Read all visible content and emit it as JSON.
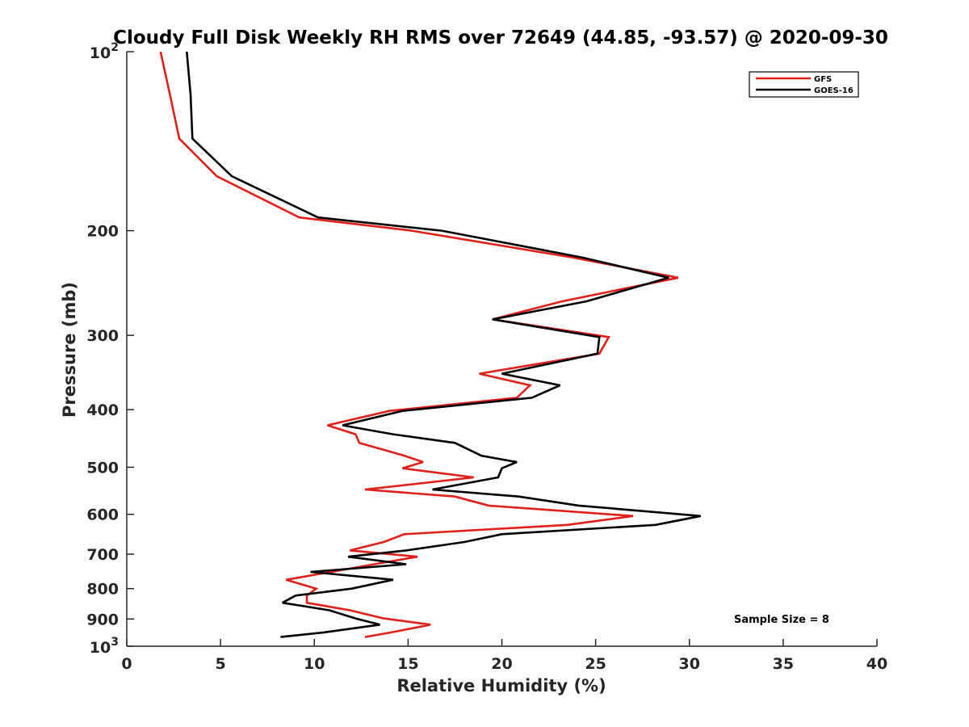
{
  "chart_data": {
    "type": "line",
    "title": "Cloudy Full Disk Weekly RH RMS over 72649 (44.85, -93.57) @ 2020-09-30",
    "xlabel": "Relative Humidity (%)",
    "ylabel": "Pressure (mb)",
    "xlim": [
      0,
      40
    ],
    "ylim": [
      100,
      1000
    ],
    "y_scale": "log",
    "y_reversed": true,
    "grid": false,
    "legend_position": "top-right",
    "x_ticks": [
      "0",
      "5",
      "10",
      "15",
      "20",
      "25",
      "30",
      "35",
      "40"
    ],
    "y_ticks": [
      {
        "value": 100,
        "base": "10",
        "exp": "2"
      },
      {
        "value": 200,
        "label": "200"
      },
      {
        "value": 300,
        "label": "300"
      },
      {
        "value": 400,
        "label": "400"
      },
      {
        "value": 500,
        "label": "500"
      },
      {
        "value": 600,
        "label": "600"
      },
      {
        "value": 700,
        "label": "700"
      },
      {
        "value": 800,
        "label": "800"
      },
      {
        "value": 900,
        "label": "900"
      },
      {
        "value": 1000,
        "base": "10",
        "exp": "3"
      }
    ],
    "annotation": "Sample Size = 8",
    "series": [
      {
        "name": "GFS",
        "color": "#e0201b",
        "points": [
          [
            1.8,
            100
          ],
          [
            2.3,
            118
          ],
          [
            2.8,
            140
          ],
          [
            4.8,
            162
          ],
          [
            9.2,
            190
          ],
          [
            15.2,
            200
          ],
          [
            23.8,
            222
          ],
          [
            29.4,
            240
          ],
          [
            23.2,
            263
          ],
          [
            19.5,
            282
          ],
          [
            25.7,
            302
          ],
          [
            25.2,
            322
          ],
          [
            18.8,
            348
          ],
          [
            21.5,
            364
          ],
          [
            20.8,
            382
          ],
          [
            14.0,
            402
          ],
          [
            10.7,
            425
          ],
          [
            12.2,
            440
          ],
          [
            12.4,
            455
          ],
          [
            14.8,
            478
          ],
          [
            15.8,
            490
          ],
          [
            14.7,
            502
          ],
          [
            18.5,
            520
          ],
          [
            12.7,
            545
          ],
          [
            17.5,
            560
          ],
          [
            19.3,
            580
          ],
          [
            27.0,
            604
          ],
          [
            23.5,
            625
          ],
          [
            14.8,
            648
          ],
          [
            13.7,
            668
          ],
          [
            11.9,
            690
          ],
          [
            15.5,
            707
          ],
          [
            13.2,
            728
          ],
          [
            10.9,
            750
          ],
          [
            8.5,
            773
          ],
          [
            10.1,
            800
          ],
          [
            9.6,
            822
          ],
          [
            9.6,
            845
          ],
          [
            11.9,
            870
          ],
          [
            13.7,
            898
          ],
          [
            16.2,
            920
          ],
          [
            14.1,
            948
          ],
          [
            12.7,
            965
          ]
        ]
      },
      {
        "name": "GOES-16",
        "color": "#000000",
        "points": [
          [
            3.2,
            100
          ],
          [
            3.4,
            118
          ],
          [
            3.5,
            140
          ],
          [
            5.6,
            162
          ],
          [
            10.2,
            190
          ],
          [
            16.8,
            200
          ],
          [
            24.3,
            222
          ],
          [
            28.9,
            240
          ],
          [
            24.5,
            263
          ],
          [
            19.5,
            282
          ],
          [
            25.2,
            302
          ],
          [
            25.1,
            322
          ],
          [
            20.0,
            348
          ],
          [
            23.1,
            364
          ],
          [
            21.6,
            382
          ],
          [
            14.7,
            402
          ],
          [
            11.5,
            425
          ],
          [
            14.2,
            440
          ],
          [
            17.5,
            455
          ],
          [
            18.9,
            478
          ],
          [
            20.8,
            490
          ],
          [
            20.0,
            502
          ],
          [
            19.8,
            520
          ],
          [
            16.3,
            545
          ],
          [
            20.9,
            560
          ],
          [
            24.1,
            580
          ],
          [
            30.6,
            604
          ],
          [
            28.2,
            625
          ],
          [
            20.0,
            648
          ],
          [
            18.0,
            668
          ],
          [
            14.9,
            690
          ],
          [
            11.8,
            707
          ],
          [
            14.9,
            728
          ],
          [
            9.8,
            750
          ],
          [
            14.2,
            773
          ],
          [
            12.0,
            800
          ],
          [
            9.0,
            822
          ],
          [
            8.3,
            845
          ],
          [
            10.8,
            870
          ],
          [
            12.2,
            898
          ],
          [
            13.5,
            920
          ],
          [
            10.5,
            948
          ],
          [
            8.2,
            965
          ]
        ]
      }
    ]
  }
}
